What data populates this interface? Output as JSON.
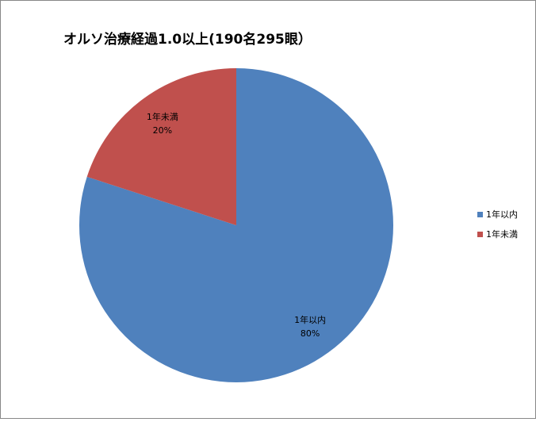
{
  "chart_data": {
    "type": "pie",
    "title": "オルソ治療経過1.0以上(190名295眼）",
    "categories": [
      "1年以内",
      "1年未満"
    ],
    "values": [
      80,
      20
    ],
    "value_labels": [
      "80%",
      "20%"
    ],
    "colors": [
      "#4f81bd",
      "#c0504d"
    ],
    "legend": "right"
  }
}
